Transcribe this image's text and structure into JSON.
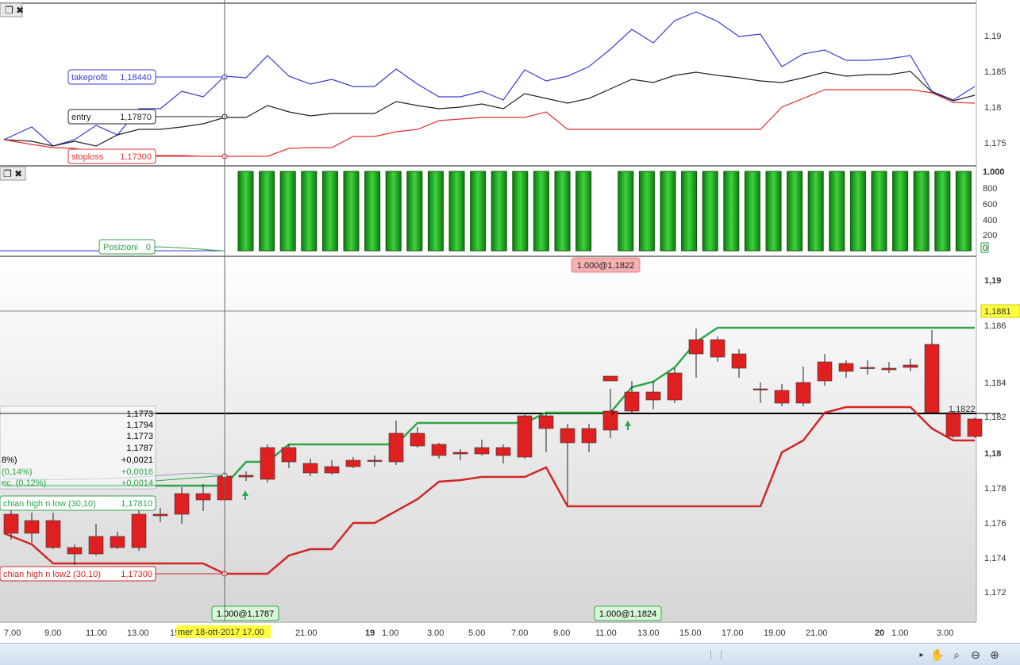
{
  "panels": {
    "top": {
      "title": "",
      "yaxis": [
        "1,19",
        "1,185",
        "1,18",
        "1,175"
      ],
      "tags": {
        "takeprofit": {
          "name": "takeprofit",
          "value": "1,18440",
          "color": "#3a3ad6"
        },
        "entry": {
          "name": "entry",
          "value": "1,17870",
          "color": "#222222"
        },
        "stoploss": {
          "name": "stoploss",
          "value": "1,17300",
          "color": "#e03030"
        }
      }
    },
    "positions": {
      "yaxis": [
        "1.000",
        "800",
        "600",
        "400",
        "200",
        "0"
      ],
      "tag": {
        "name": "Posizioni",
        "value": "0"
      },
      "bar_color": "#1fa01f"
    },
    "main": {
      "yaxis": [
        "1,19",
        "1,186",
        "1,184",
        "1,182",
        "1,18",
        "1,178",
        "1,176",
        "1,174",
        "1,172"
      ],
      "current_price": "1,1881",
      "last_price_label": "1,1822",
      "sell_label": "1.000@1,1822",
      "buy_label_1": "1.000@1,1787",
      "buy_label_2": "1.000@1,1824",
      "readout": [
        "1,1773",
        "1,1794",
        "1,1773",
        "1,1787",
        "+0,0021",
        "+0,0016",
        "+0,0014"
      ],
      "readout_left": [
        "8%)",
        " (0,14%)",
        "ec. (0,12%)"
      ],
      "indicator_high": {
        "name": "chian high n low (30,10)",
        "value": "1,17810"
      },
      "indicator_low": {
        "name": "chian high n low2 (30,10)",
        "value": "1,17300"
      }
    },
    "timeaxis": {
      "labels": [
        "7.00",
        "9.00",
        "11.00",
        "13.00",
        "15.00",
        "21.00",
        "19",
        "1.00",
        "3.00",
        "5.00",
        "7.00",
        "9.00",
        "11.00",
        "13.00",
        "15.00",
        "17.00",
        "19.00",
        "21.00",
        "20",
        "1.00",
        "3.00"
      ],
      "cursor_label": "mer 18-ott-2017 17.00"
    }
  },
  "colors": {
    "up": "#22c422",
    "down": "#e02020",
    "high_line": "#2ea64a",
    "low_line": "#d02828"
  },
  "toolbar": {
    "icons": [
      "play-icon",
      "hand-icon",
      "zoom-fit-icon",
      "zoom-out-icon",
      "zoom-in-icon"
    ]
  }
}
